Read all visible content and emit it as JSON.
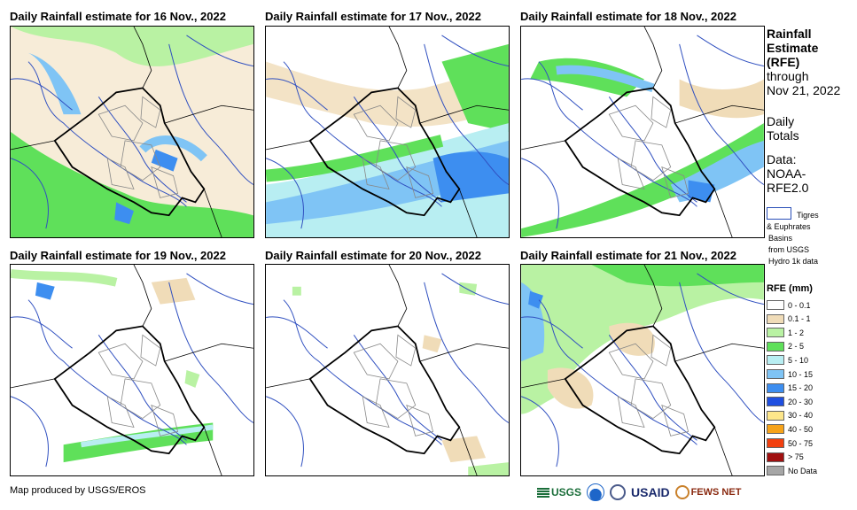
{
  "panels": [
    {
      "title": "Daily Rainfall estimate for 16 Nov., 2022"
    },
    {
      "title": "Daily Rainfall estimate for 17 Nov., 2022"
    },
    {
      "title": "Daily Rainfall estimate for 18 Nov., 2022"
    },
    {
      "title": "Daily Rainfall estimate for 19 Nov., 2022"
    },
    {
      "title": "Daily Rainfall estimate for 20 Nov., 2022"
    },
    {
      "title": "Daily Rainfall estimate for 21 Nov., 2022"
    }
  ],
  "legend": {
    "heading_line1": "Rainfall",
    "heading_line2": "Estimate",
    "heading_line3": "(RFE)",
    "through": "through",
    "date": "Nov 21, 2022",
    "daily_line1": "Daily",
    "daily_line2": "Totals",
    "data_line1": "Data:",
    "data_line2": "NOAA-",
    "data_line3": "RFE2.0",
    "basin_line1": "Tigres",
    "basin_line2": "& Euphrates",
    "basin_line3": "Basins",
    "basin_line4": "from USGS",
    "basin_line5": "Hydro 1k data",
    "rfe_title": "RFE (mm)",
    "classes": [
      {
        "label": "0 - 0.1",
        "color": "#ffffff"
      },
      {
        "label": "0.1 - 1",
        "color": "#f0dcb8"
      },
      {
        "label": "1 - 2",
        "color": "#b9f2a3"
      },
      {
        "label": "2 - 5",
        "color": "#5fe05a"
      },
      {
        "label": "5 - 10",
        "color": "#b8eef2"
      },
      {
        "label": "10 - 15",
        "color": "#7fc4f5"
      },
      {
        "label": "15 - 20",
        "color": "#3d8ef0"
      },
      {
        "label": "20 - 30",
        "color": "#1f4fe0"
      },
      {
        "label": "30 - 40",
        "color": "#fde68a"
      },
      {
        "label": "40 - 50",
        "color": "#f6a31a"
      },
      {
        "label": "50 - 75",
        "color": "#f2400f"
      },
      {
        "label": "> 75",
        "color": "#a01010"
      },
      {
        "label": "No Data",
        "color": "#a6a6a6"
      }
    ]
  },
  "footer": {
    "credit": "Map produced by USGS/EROS",
    "logo_usgs": "USGS",
    "logo_usaid": "USAID",
    "logo_fews": "FEWS NET"
  }
}
